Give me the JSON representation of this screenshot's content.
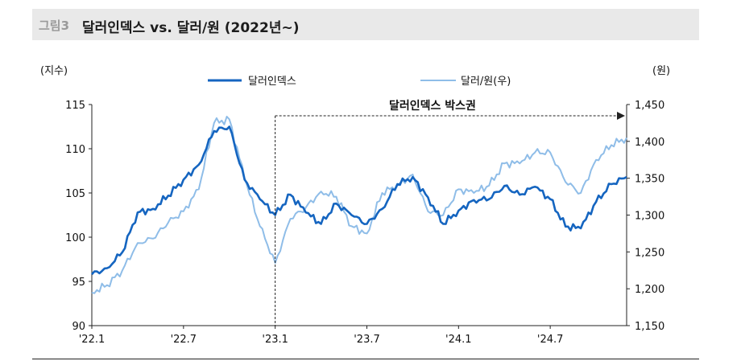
{
  "header": {
    "figure_no": "그림3",
    "title": "달러인덱스 vs. 달러/원 (2022년~)"
  },
  "colors": {
    "dxy": "#1565c0",
    "usdkrw": "#8fbde8",
    "header_bg": "#e9e9e9"
  },
  "chart_data": {
    "type": "line",
    "title": "달러인덱스 vs. 달러/원 (2022년~)",
    "left_unit": "(지수)",
    "right_unit": "(원)",
    "x_ticks": [
      "'22.1",
      "'22.7",
      "'23.1",
      "'23.7",
      "'24.1",
      "'24.7"
    ],
    "y_left": {
      "min": 90,
      "max": 115,
      "ticks": [
        "90",
        "95",
        "100",
        "105",
        "110",
        "115"
      ]
    },
    "y_right": {
      "min": 1150,
      "max": 1450,
      "ticks": [
        "1,150",
        "1,200",
        "1,250",
        "1,300",
        "1,350",
        "1,400",
        "1,450"
      ]
    },
    "annotation": {
      "text": "달러인덱스 박스권",
      "from": "'23.1"
    },
    "legend": [
      "달러인덱스",
      "달러/원(우)"
    ],
    "months": [
      "2022-01",
      "2022-02",
      "2022-03",
      "2022-04",
      "2022-05",
      "2022-06",
      "2022-07",
      "2022-08",
      "2022-09",
      "2022-10",
      "2022-11",
      "2022-12",
      "2023-01",
      "2023-02",
      "2023-03",
      "2023-04",
      "2023-05",
      "2023-06",
      "2023-07",
      "2023-08",
      "2023-09",
      "2023-10",
      "2023-11",
      "2023-12",
      "2024-01",
      "2024-02",
      "2024-03",
      "2024-04",
      "2024-05",
      "2024-06",
      "2024-07",
      "2024-08",
      "2024-09",
      "2024-10",
      "2024-11",
      "2024-12"
    ],
    "series": [
      {
        "name": "달러인덱스",
        "axis": "left",
        "values": [
          95.8,
          96.5,
          98.3,
          102.8,
          103.2,
          104.7,
          106.5,
          108.2,
          112.0,
          112.5,
          106.5,
          104.3,
          102.5,
          104.8,
          102.8,
          101.5,
          103.8,
          102.5,
          101.5,
          103.2,
          106.0,
          106.8,
          104.5,
          101.5,
          103.0,
          104.2,
          104.3,
          105.8,
          104.8,
          105.7,
          104.3,
          101.2,
          101.0,
          104.0,
          106.0,
          106.8
        ]
      },
      {
        "name": "달러/원(우)",
        "axis": "right",
        "values": [
          1195,
          1205,
          1225,
          1262,
          1268,
          1290,
          1305,
          1335,
          1425,
          1430,
          1350,
          1285,
          1235,
          1295,
          1310,
          1332,
          1325,
          1285,
          1275,
          1330,
          1340,
          1355,
          1305,
          1300,
          1335,
          1330,
          1340,
          1370,
          1370,
          1385,
          1385,
          1345,
          1330,
          1375,
          1395,
          1405
        ]
      }
    ]
  }
}
